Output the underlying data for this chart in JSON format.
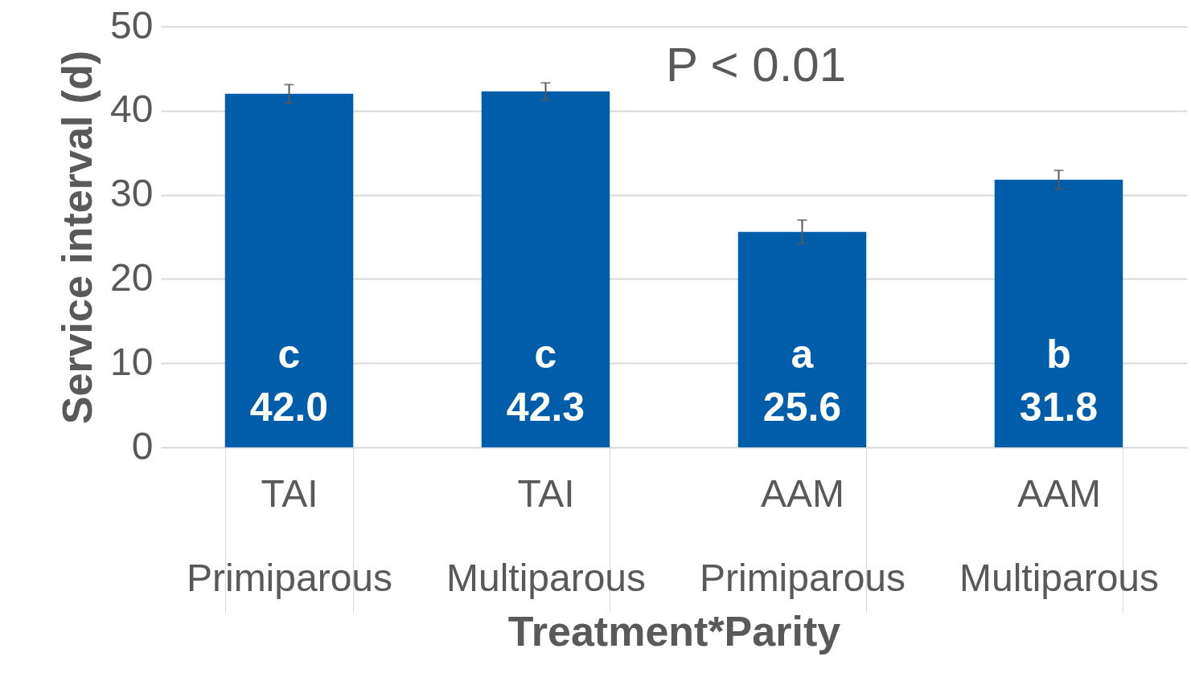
{
  "chart_data": {
    "type": "bar",
    "ylabel": "Service interval (d)",
    "xlabel": "Treatment*Parity",
    "categories": [
      "TAI\nPrimiparous",
      "TAI\nMultiparous",
      "AAM\nPrimiparous",
      "AAM\nMultiparous"
    ],
    "values": [
      42.0,
      42.3,
      25.6,
      31.8
    ],
    "errors": [
      1.1,
      1.0,
      1.4,
      1.1
    ],
    "value_labels": [
      "c\n42.0",
      "c\n42.3",
      "a\n25.6",
      "b\n31.8"
    ],
    "color": "#005daa",
    "ylim": [
      0,
      50
    ],
    "yticks": [
      0,
      10,
      20,
      30,
      40,
      50
    ],
    "grid": "y",
    "annotations": [
      "P < 0.01"
    ]
  }
}
